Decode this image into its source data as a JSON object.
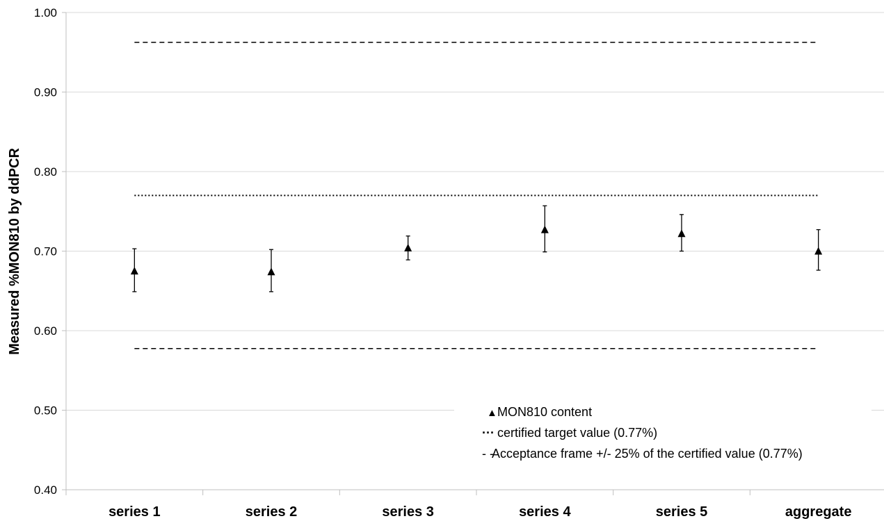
{
  "chart_data": {
    "type": "scatter",
    "ylabel": "Measured %MON810 by ddPCR",
    "xlabel": "",
    "title": "",
    "ylim": [
      0.4,
      1.0
    ],
    "ytick_step": 0.1,
    "yticks": [
      "0.40",
      "0.50",
      "0.60",
      "0.70",
      "0.80",
      "0.90",
      "1.00"
    ],
    "categories": [
      "series 1",
      "series 2",
      "series 3",
      "series 4",
      "series 5",
      "aggregate"
    ],
    "grid": true,
    "series": [
      {
        "name": "MON810 content",
        "marker": "triangle",
        "values": [
          0.675,
          0.674,
          0.704,
          0.727,
          0.722,
          0.7
        ],
        "error_low": [
          0.649,
          0.649,
          0.689,
          0.699,
          0.7,
          0.676
        ],
        "error_high": [
          0.703,
          0.702,
          0.719,
          0.757,
          0.746,
          0.727
        ]
      }
    ],
    "reference_lines": [
      {
        "name": "certified target value (0.77%)",
        "value": 0.77,
        "style": "dotted"
      },
      {
        "name": "Acceptance frame +/- 25% of the certified value (0.77%)",
        "value": 0.9625,
        "style": "dashed"
      },
      {
        "name": "Acceptance frame +/- 25% of the certified value (0.77%)",
        "value": 0.5775,
        "style": "dashed"
      }
    ],
    "legend": {
      "placement": "bottom-right",
      "entries": [
        {
          "symbol": "▲",
          "label": "MON810 content"
        },
        {
          "symbol": "···",
          "label": "certified target value (0.77%)"
        },
        {
          "symbol": "- -",
          "label": "Acceptance frame +/- 25% of the certified value (0.77%)"
        }
      ]
    },
    "colors": {
      "axis": "#bfbfbf",
      "grid": "#d9d9d9",
      "mark": "#000000"
    }
  }
}
